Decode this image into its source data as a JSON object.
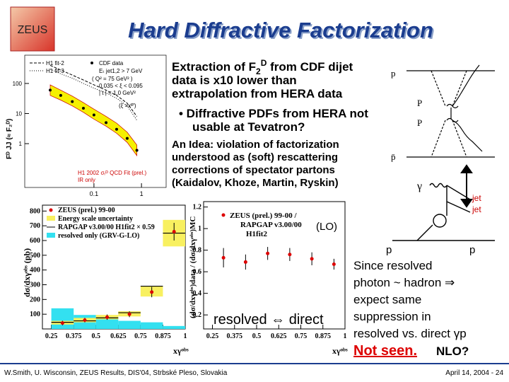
{
  "header": {
    "logo": "ZEUS",
    "title": "Hard Diffractive Factorization"
  },
  "plot1": {
    "ylabel": "Fᴰ JJ (≈ F₂ᴰ)",
    "legend": [
      "H1 fit-2",
      "H1 fit-3",
      "CDF data"
    ],
    "cuts": [
      "Eₜ jet1,2 > 7 GeV",
      "( Q² = 75 GeV² )",
      "0.035 < ξ < 0.095",
      "| t | < 1.0 GeV²"
    ],
    "note": "(ξ =xᴵᴾ)",
    "legend2": [
      "H1 2002 σᵣᴰ QCD Fit (prel.)",
      "IR only"
    ],
    "xlim": [
      0.0035,
      3.3
    ],
    "ylim": [
      0.035,
      870
    ],
    "yticks": [
      1,
      10,
      100
    ],
    "xticks": [
      0.1,
      1
    ],
    "x": [
      0.012,
      0.02,
      0.035,
      0.06,
      0.1,
      0.18,
      0.3,
      0.5,
      0.8
    ],
    "cdf": [
      60,
      40,
      25,
      15,
      9,
      5,
      3,
      1.5,
      0.6
    ],
    "fit2": [
      400,
      280,
      190,
      130,
      90,
      60,
      40,
      22,
      8
    ],
    "fit3": [
      300,
      210,
      150,
      100,
      70,
      48,
      32,
      18,
      6
    ],
    "band_low": [
      40,
      28,
      18,
      11,
      6.5,
      3.8,
      2.2,
      1.1,
      0.4
    ],
    "band_high": [
      90,
      60,
      38,
      23,
      14,
      8,
      4.8,
      2.4,
      0.9
    ]
  },
  "text1": {
    "pre": "Extraction of F",
    "sub": "2",
    "sup": "D",
    "post": " from CDF dijet",
    "lines": [
      "data is x10 lower than",
      "extrapolation from HERA data"
    ]
  },
  "text2": [
    "• Diffractive PDFs from HERA not",
    "usable at Tevatron?"
  ],
  "text3": [
    "An Idea: violation of factorization",
    "understood as (soft) rescattering",
    "corrections of spectator partons",
    "(Kaidalov, Khoze, Martin, Ryskin)"
  ],
  "diagram1": {
    "labels": [
      "p",
      "P",
      "P",
      "p̄"
    ]
  },
  "diagram2": {
    "labels": [
      "γ",
      "jet",
      "jet",
      "p",
      "p"
    ]
  },
  "plot2": {
    "ylabel": "dσ/dxγᵒᵇˢ (pb)",
    "xlabel": "xγᵒᵇˢ",
    "legend": [
      "ZEUS (prel.) 99-00",
      "Energy scale uncertainty",
      "RAPGAP v3.00/00 H1fit2 × 0.59",
      "resolved only (GRV-G-LO)"
    ],
    "xlim": [
      0.2,
      1
    ],
    "ylim": [
      0,
      840
    ],
    "yticks": [
      100,
      200,
      300,
      400,
      500,
      600,
      700,
      800
    ],
    "xticks": [
      0.25,
      0.375,
      0.5,
      0.625,
      0.75,
      0.875,
      1
    ],
    "bins": [
      0.25,
      0.375,
      0.5,
      0.625,
      0.75,
      0.875,
      1
    ],
    "x": [
      0.3125,
      0.4375,
      0.5625,
      0.6875,
      0.8125,
      0.9375
    ],
    "values": [
      40,
      60,
      80,
      100,
      250,
      660
    ],
    "errors": [
      15,
      15,
      18,
      20,
      35,
      60
    ],
    "scale_low": [
      30,
      45,
      65,
      85,
      220,
      560
    ],
    "scale_high": [
      55,
      75,
      95,
      120,
      290,
      740
    ],
    "rapgap": [
      45,
      55,
      75,
      110,
      290,
      650
    ],
    "resolved": [
      140,
      95,
      70,
      55,
      45,
      20
    ]
  },
  "plot3": {
    "ylabel": "(dσ/dxγᵒᵇˢ)data / (dσ/dxγᵒᵇˢ)MC",
    "xlabel": "xγᵒᵇˢ",
    "legend": [
      "ZEUS (prel.) 99-00 /",
      "RAPGAP v3.00/00",
      "H1fit2"
    ],
    "xlim": [
      0.2,
      1
    ],
    "ylim": [
      0.07,
      1.25
    ],
    "yticks": [
      0.2,
      0.4,
      0.6,
      0.8,
      1,
      1.2
    ],
    "xticks": [
      0.25,
      0.375,
      0.5,
      0.625,
      0.75,
      0.875,
      1
    ],
    "x": [
      0.3125,
      0.4375,
      0.5625,
      0.6875,
      0.8125,
      0.9375
    ],
    "values": [
      0.73,
      0.69,
      0.77,
      0.76,
      0.72,
      0.67
    ],
    "errors": [
      0.09,
      0.07,
      0.06,
      0.06,
      0.06,
      0.05
    ]
  },
  "lo": "(LO)",
  "resolved_direct": "resolved ⇔ direct",
  "text4": [
    "Since resolved",
    "photon ~ hadron ⇒",
    "expect same",
    "suppression in",
    "resolved vs. direct γp"
  ],
  "not_seen": "Not seen.",
  "nlo": "NLO?",
  "footer": {
    "left": "W.Smith, U. Wisconsin, ZEUS Results, DIS'04, Strbské Pleso, Slovakia",
    "right": "April 14, 2004 - 24"
  }
}
